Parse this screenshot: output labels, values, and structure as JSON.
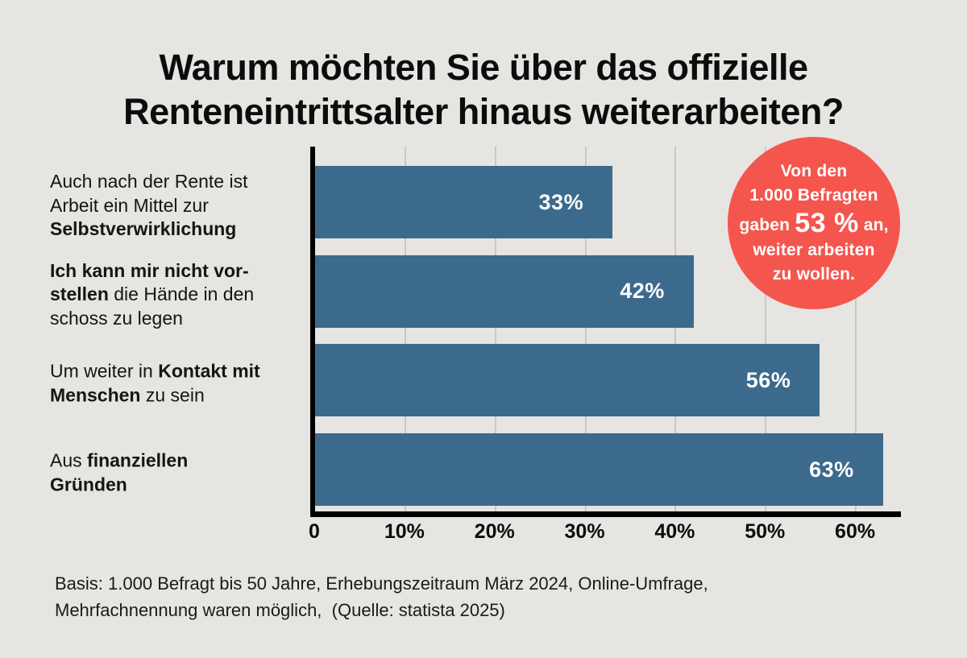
{
  "title": {
    "lines": [
      "Warum möchten Sie über das offizielle",
      "Renteneintrittsalter hinaus weiterarbeiten?"
    ]
  },
  "chart_data": {
    "type": "bar",
    "orientation": "horizontal",
    "title": "Warum möchten Sie über das offizielle Renteneintrittsalter hinaus weiterarbeiten?",
    "categories": [
      "Auch nach der Rente ist Arbeit ein Mittel zur Selbstverwirklichung",
      "Ich kann mir nicht vorstellen die Hände in den schoss zu legen",
      "Um weiter in Kontakt mit Menschen zu sein",
      "Aus finanziellen Gründen"
    ],
    "categories_rich": [
      [
        [
          {
            "t": "Auch nach der Rente ist"
          }
        ],
        [
          {
            "t": "Arbeit ein Mittel zur"
          }
        ],
        [
          {
            "t": "Selbstverwirklichung",
            "b": true
          }
        ]
      ],
      [
        [
          {
            "t": "Ich kann mir nicht vor-",
            "b": true
          }
        ],
        [
          {
            "t": "stellen",
            "b": true
          },
          {
            "t": " die Hände in den"
          }
        ],
        [
          {
            "t": "schoss zu legen"
          }
        ]
      ],
      [
        [
          {
            "t": "Um weiter in "
          },
          {
            "t": "Kontakt mit",
            "b": true
          }
        ],
        [
          {
            "t": "Menschen",
            "b": true
          },
          {
            "t": " zu sein"
          }
        ]
      ],
      [
        [
          {
            "t": "Aus "
          },
          {
            "t": "finanziellen",
            "b": true
          }
        ],
        [
          {
            "t": "Gründen",
            "b": true
          }
        ]
      ]
    ],
    "values": [
      33,
      42,
      56,
      63
    ],
    "value_labels": [
      "33%",
      "42%",
      "56%",
      "63%"
    ],
    "value_label_position": "inside-right",
    "x_ticks": [
      {
        "v": 0,
        "label": "0"
      },
      {
        "v": 10,
        "label": "10%"
      },
      {
        "v": 20,
        "label": "20%"
      },
      {
        "v": 30,
        "label": "30%"
      },
      {
        "v": 40,
        "label": "40%"
      },
      {
        "v": 50,
        "label": "50%"
      },
      {
        "v": 60,
        "label": "60%"
      }
    ],
    "xlim": [
      0,
      65
    ],
    "grid": "vertical-gridlines-behind-bars",
    "legend": "none"
  },
  "badge": {
    "lines": [
      [
        {
          "t": "Von den"
        }
      ],
      [
        {
          "t": "1.000 Befragten"
        }
      ],
      [
        {
          "t": "gaben "
        },
        {
          "t": "53 %",
          "big": true
        },
        {
          "t": " an,"
        }
      ],
      [
        {
          "t": "weiter arbeiten"
        }
      ],
      [
        {
          "t": "zu wollen."
        }
      ]
    ],
    "highlight_value": "53 %"
  },
  "footer": {
    "lines": [
      "Basis: 1.000 Befragt bis 50 Jahre, Erhebungszeitraum März 2024, Online-Umfrage,",
      "Mehrfachnennung waren möglich,  (Quelle: statista 2025)"
    ]
  },
  "colors": {
    "background": "#E6E5E2",
    "bar": "#3B6A8C",
    "badge": "#F4564E",
    "badge_text": "#FFFFFF",
    "axis": "#000000",
    "gridline": "#C8C7C4",
    "text": "#111111",
    "bar_value_text": "#FFFFFF"
  }
}
